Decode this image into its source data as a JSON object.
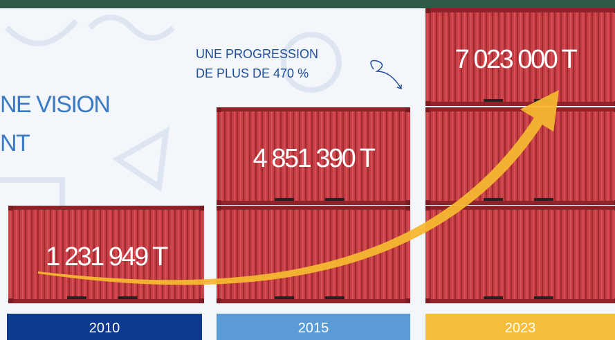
{
  "headline": [
    "NE VISION",
    "NT"
  ],
  "annotation": [
    "UNE PROGRESSION",
    "DE PLUS DE 470 %"
  ],
  "columns": [
    {
      "year": "2010",
      "value": "1 231 949 T"
    },
    {
      "year": "2015",
      "value": "4 851 390 T"
    },
    {
      "year": "2023",
      "value": "7 023 000 T"
    }
  ]
}
